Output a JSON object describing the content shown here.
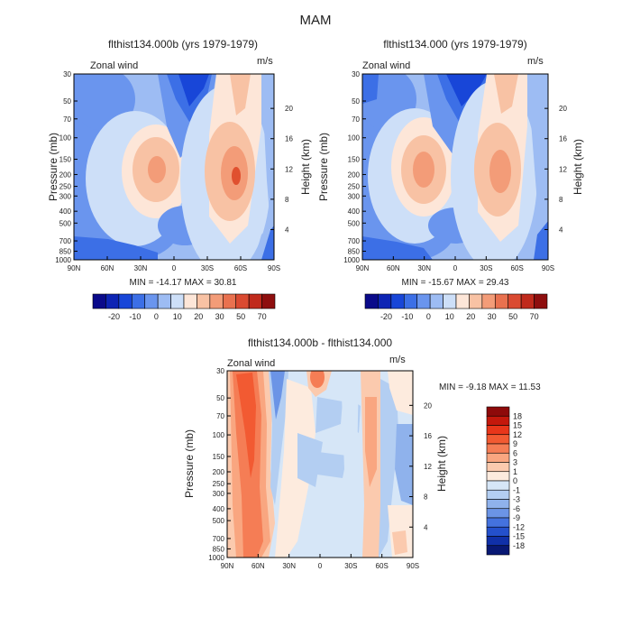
{
  "figure_title": "MAM",
  "chart_data": [
    {
      "type": "heatmap",
      "title": "flthist134.000b (yrs 1979-1979)",
      "variable_label": "Zonal wind",
      "units_label": "m/s",
      "ylabel": "Pressure (mb)",
      "ylabel_right": "Height (km)",
      "x_ticks": [
        "90N",
        "60N",
        "30N",
        "0",
        "30S",
        "60S",
        "90S"
      ],
      "y_ticks": [
        "30",
        "50",
        "70",
        "100",
        "150",
        "200",
        "250",
        "300",
        "400",
        "500",
        "700",
        "850",
        "1000"
      ],
      "y2_ticks": [
        "20",
        "16",
        "12",
        "8",
        "4"
      ],
      "stats_text": "MIN = -14.17   MAX = 30.81",
      "min": -14.17,
      "max": 30.81,
      "colorbar_labels": [
        "-20",
        "-10",
        "0",
        "10",
        "20",
        "30",
        "50",
        "70"
      ],
      "colorbar_colors": [
        "#0a0a8a",
        "#0d24b4",
        "#1846d8",
        "#3c6fe6",
        "#6a95ee",
        "#9dbcf3",
        "#cddff8",
        "#fde6d8",
        "#f8c2a4",
        "#f39c78",
        "#e9714f",
        "#da4a31",
        "#c02a1c",
        "#8e0e0e"
      ]
    },
    {
      "type": "heatmap",
      "title": "flthist134.000 (yrs 1979-1979)",
      "variable_label": "Zonal wind",
      "units_label": "m/s",
      "ylabel": "Pressure (mb)",
      "ylabel_right": "Height (km)",
      "x_ticks": [
        "90N",
        "60N",
        "30N",
        "0",
        "30S",
        "60S",
        "90S"
      ],
      "y_ticks": [
        "30",
        "50",
        "70",
        "100",
        "150",
        "200",
        "250",
        "300",
        "400",
        "500",
        "700",
        "850",
        "1000"
      ],
      "y2_ticks": [
        "20",
        "16",
        "12",
        "8",
        "4"
      ],
      "stats_text": "MIN = -15.67   MAX = 29.43",
      "min": -15.67,
      "max": 29.43,
      "colorbar_labels": [
        "-20",
        "-10",
        "0",
        "10",
        "20",
        "30",
        "50",
        "70"
      ],
      "colorbar_colors": [
        "#0a0a8a",
        "#0d24b4",
        "#1846d8",
        "#3c6fe6",
        "#6a95ee",
        "#9dbcf3",
        "#cddff8",
        "#fde6d8",
        "#f8c2a4",
        "#f39c78",
        "#e9714f",
        "#da4a31",
        "#c02a1c",
        "#8e0e0e"
      ]
    },
    {
      "type": "heatmap",
      "title": "flthist134.000b - flthist134.000",
      "variable_label": "Zonal wind",
      "units_label": "m/s",
      "ylabel": "Pressure (mb)",
      "ylabel_right": "Height (km)",
      "x_ticks": [
        "90N",
        "60N",
        "30N",
        "0",
        "30S",
        "60S",
        "90S"
      ],
      "y_ticks": [
        "30",
        "50",
        "70",
        "100",
        "150",
        "200",
        "250",
        "300",
        "400",
        "500",
        "700",
        "850",
        "1000"
      ],
      "y2_ticks": [
        "20",
        "16",
        "12",
        "8",
        "4"
      ],
      "stats_text": "MIN =   -9.18   MAX =   11.53",
      "min": -9.18,
      "max": 11.53,
      "colorbar_labels": [
        "18",
        "15",
        "12",
        "9",
        "6",
        "3",
        "1",
        "0",
        "-1",
        "-3",
        "-6",
        "-9",
        "-12",
        "-15",
        "-18"
      ],
      "colorbar_colors": [
        "#8e0a0a",
        "#c4180c",
        "#e8361a",
        "#f25a32",
        "#f57d55",
        "#f9a680",
        "#fbcaae",
        "#fdebde",
        "#d6e6f7",
        "#b3cef2",
        "#8fb2ec",
        "#6b94e6",
        "#4472de",
        "#2450cc",
        "#1030a8",
        "#081874"
      ]
    }
  ]
}
